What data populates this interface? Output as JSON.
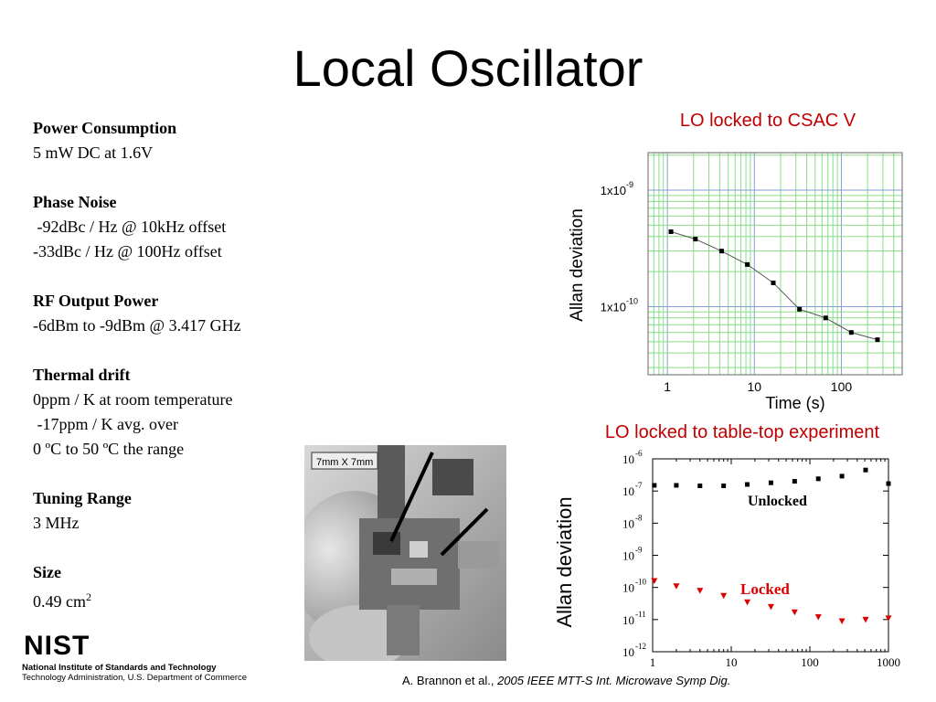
{
  "slide": {
    "title": "Local Oscillator",
    "specs": [
      {
        "heading": "Power Consumption",
        "lines": [
          "5 mW DC at 1.6V"
        ]
      },
      {
        "heading": "Phase Noise",
        "lines": [
          " -92dBc / Hz @ 10kHz offset",
          "-33dBc / Hz @ 100Hz offset"
        ]
      },
      {
        "heading": "RF Output Power",
        "lines": [
          "-6dBm to -9dBm @ 3.417 GHz"
        ]
      },
      {
        "heading": "Thermal drift",
        "lines": [
          "0ppm / K at room temperature",
          " -17ppm / K avg. over",
          "0 ºC to 50 ºC the range"
        ]
      },
      {
        "heading": "Tuning Range",
        "lines": [
          "3 MHz"
        ]
      },
      {
        "heading": "Size",
        "lines": [
          "0.49 cm"
        ],
        "superscript": "2"
      }
    ],
    "photo_caption": "7mm X 7mm",
    "nist": {
      "logo_text": "NIST",
      "line1": "National Institute of Standards and Technology",
      "line2": "Technology Administration, U.S. Department of Commerce"
    },
    "citation": {
      "authors": "A. Brannon et al., ",
      "venue": "2005 IEEE MTT-S Int. Microwave Symp Dig."
    }
  },
  "chart_data": [
    {
      "type": "line",
      "title": "LO locked to CSAC V",
      "xlabel": "Time (s)",
      "ylabel": "Allan deviation",
      "x_scale": "log",
      "y_scale": "log",
      "xlim": [
        0.6,
        500
      ],
      "ylim": [
        2.6e-11,
        2.1e-09
      ],
      "x_ticks": [
        {
          "v": 1,
          "label": "1"
        },
        {
          "v": 10,
          "label": "10"
        },
        {
          "v": 100,
          "label": "100"
        }
      ],
      "y_ticks": [
        {
          "v": 1e-09,
          "base": "1x10",
          "exp": "-9"
        },
        {
          "v": 1e-10,
          "base": "1x10",
          "exp": "-10"
        }
      ],
      "grid": true,
      "series": [
        {
          "x": [
            1.1,
            2.1,
            4.2,
            8.3,
            16.5,
            33,
            66,
            130,
            260
          ],
          "y": [
            4.4e-10,
            3.8e-10,
            3e-10,
            2.3e-10,
            1.6e-10,
            9.5e-11,
            8e-11,
            6e-11,
            5.2e-11
          ]
        }
      ],
      "colors": {
        "line": "#555555",
        "marker": "#000000",
        "grid": "#88dd88",
        "minor_grid": "#c8f0c8"
      }
    },
    {
      "type": "scatter",
      "title": "LO locked to table-top experiment",
      "xlabel": "",
      "ylabel": "Allan deviation",
      "x_scale": "log",
      "y_scale": "log",
      "xlim": [
        1,
        1000
      ],
      "ylim": [
        1e-12,
        1e-06
      ],
      "x_ticks": [
        {
          "v": 1,
          "label": "1"
        },
        {
          "v": 10,
          "label": "10"
        },
        {
          "v": 100,
          "label": "100"
        },
        {
          "v": 1000,
          "label": "1000"
        }
      ],
      "y_ticks": [
        {
          "v": 1e-06,
          "base": "10",
          "exp": "-6"
        },
        {
          "v": 1e-07,
          "base": "10",
          "exp": "-7"
        },
        {
          "v": 1e-08,
          "base": "10",
          "exp": "-8"
        },
        {
          "v": 1e-09,
          "base": "10",
          "exp": "-9"
        },
        {
          "v": 1e-10,
          "base": "10",
          "exp": "-10"
        },
        {
          "v": 1e-11,
          "base": "10",
          "exp": "-11"
        },
        {
          "v": 1e-12,
          "base": "10",
          "exp": "-12"
        }
      ],
      "grid": false,
      "series": [
        {
          "name": "Unlocked",
          "color": "#000000",
          "marker": "square",
          "x": [
            1.05,
            2,
            4,
            8,
            16,
            32,
            64,
            128,
            256,
            512,
            1000
          ],
          "y": [
            1.5e-07,
            1.5e-07,
            1.45e-07,
            1.45e-07,
            1.6e-07,
            1.8e-07,
            2e-07,
            2.4e-07,
            2.9e-07,
            4.5e-07,
            1.7e-07
          ]
        },
        {
          "name": "Locked",
          "color": "#dd0000",
          "marker": "triangle-down",
          "x": [
            1.05,
            2,
            4,
            8,
            16,
            32,
            64,
            128,
            256,
            512,
            1000
          ],
          "y": [
            1.6e-10,
            1.1e-10,
            8e-11,
            5.5e-11,
            3.5e-11,
            2.5e-11,
            1.7e-11,
            1.2e-11,
            9e-12,
            1e-11,
            1.1e-11
          ]
        }
      ]
    }
  ]
}
